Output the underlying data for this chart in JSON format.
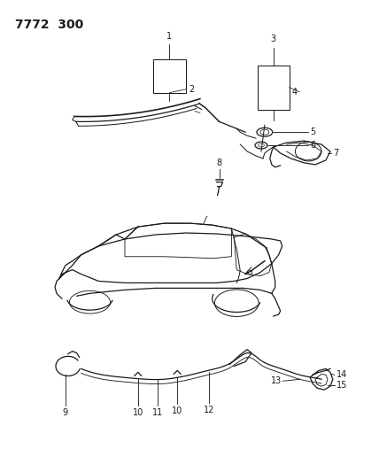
{
  "title": "7772 300",
  "bg": "#ffffff",
  "lc": "#1a1a1a",
  "fig_w": 4.28,
  "fig_h": 5.33,
  "dpi": 100
}
